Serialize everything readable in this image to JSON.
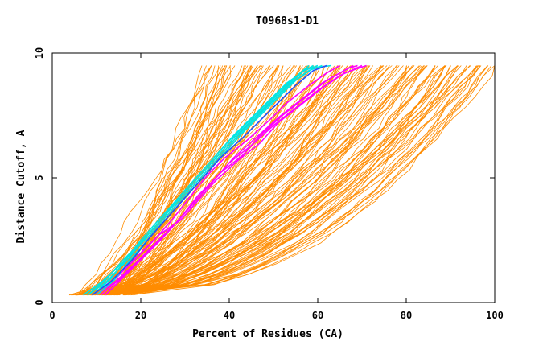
{
  "colors": {
    "background": "#ffffff",
    "axis": "#000000",
    "orange": "#ff8c00",
    "magenta": "#ff00ff",
    "cyan": "#00e5e5",
    "blue": "#1e50ff"
  },
  "chart_data": {
    "type": "line",
    "title": "T0968s1-D1",
    "xlabel": "Percent of Residues (CA)",
    "ylabel": "Distance Cutoff, A",
    "xlim": [
      0,
      100
    ],
    "ylim": [
      0,
      10
    ],
    "xticks": [
      0,
      20,
      40,
      60,
      80,
      100
    ],
    "yticks": [
      0,
      5,
      10
    ],
    "x_tick_labels": [
      "0",
      "20",
      "40",
      "60",
      "80",
      "100"
    ],
    "y_tick_labels": [
      "0",
      "5",
      "10"
    ],
    "y_max_curve": 9.5,
    "y_min_curve": 0.3,
    "highlight_series": [
      {
        "name": "magenta-1",
        "color": "magenta",
        "points": [
          [
            10,
            0.3
          ],
          [
            14,
            0.8
          ],
          [
            19,
            1.6
          ],
          [
            24,
            2.5
          ],
          [
            28,
            3.2
          ],
          [
            32,
            4.0
          ],
          [
            36,
            4.8
          ],
          [
            40,
            5.6
          ],
          [
            45,
            6.3
          ],
          [
            50,
            7.1
          ],
          [
            55,
            7.8
          ],
          [
            60,
            8.5
          ],
          [
            65,
            9.1
          ],
          [
            70,
            9.5
          ]
        ]
      },
      {
        "name": "magenta-2",
        "color": "magenta",
        "points": [
          [
            11,
            0.3
          ],
          [
            15,
            0.9
          ],
          [
            20,
            1.7
          ],
          [
            25,
            2.6
          ],
          [
            29,
            3.4
          ],
          [
            33,
            4.3
          ],
          [
            37,
            5.0
          ],
          [
            41,
            5.8
          ],
          [
            46,
            6.6
          ],
          [
            51,
            7.4
          ],
          [
            56,
            8.1
          ],
          [
            61,
            8.8
          ],
          [
            66,
            9.3
          ],
          [
            68,
            9.5
          ]
        ]
      },
      {
        "name": "magenta-3",
        "color": "magenta",
        "points": [
          [
            12,
            0.3
          ],
          [
            16,
            1.0
          ],
          [
            21,
            1.9
          ],
          [
            26,
            2.8
          ],
          [
            30,
            3.6
          ],
          [
            34,
            4.4
          ],
          [
            38,
            5.2
          ],
          [
            43,
            5.9
          ],
          [
            47,
            6.7
          ],
          [
            52,
            7.5
          ],
          [
            57,
            8.2
          ],
          [
            62,
            8.9
          ],
          [
            67,
            9.4
          ],
          [
            69,
            9.5
          ]
        ]
      },
      {
        "name": "magenta-4",
        "color": "magenta",
        "points": [
          [
            9,
            0.3
          ],
          [
            13,
            0.8
          ],
          [
            18,
            1.6
          ],
          [
            23,
            2.5
          ],
          [
            27,
            3.3
          ],
          [
            31,
            4.2
          ],
          [
            35,
            5.1
          ],
          [
            39,
            5.8
          ],
          [
            44,
            6.5
          ],
          [
            49,
            7.3
          ],
          [
            53,
            8.0
          ],
          [
            58,
            8.7
          ],
          [
            62,
            9.2
          ],
          [
            65,
            9.5
          ]
        ]
      },
      {
        "name": "magenta-5",
        "color": "magenta",
        "points": [
          [
            10,
            0.3
          ],
          [
            14,
            0.9
          ],
          [
            19,
            1.8
          ],
          [
            24,
            2.7
          ],
          [
            29,
            3.3
          ],
          [
            33,
            4.1
          ],
          [
            37,
            4.9
          ],
          [
            42,
            5.7
          ],
          [
            47,
            6.4
          ],
          [
            51,
            7.2
          ],
          [
            56,
            7.9
          ],
          [
            61,
            8.6
          ],
          [
            66,
            9.2
          ],
          [
            71,
            9.5
          ]
        ]
      },
      {
        "name": "cyan-1",
        "color": "cyan",
        "points": [
          [
            8,
            0.3
          ],
          [
            12,
            0.8
          ],
          [
            17,
            1.7
          ],
          [
            21,
            2.6
          ],
          [
            25,
            3.4
          ],
          [
            29,
            4.2
          ],
          [
            33,
            5.0
          ],
          [
            37,
            5.8
          ],
          [
            41,
            6.6
          ],
          [
            45,
            7.3
          ],
          [
            49,
            8.0
          ],
          [
            53,
            8.7
          ],
          [
            57,
            9.3
          ],
          [
            59,
            9.5
          ]
        ]
      },
      {
        "name": "cyan-2",
        "color": "cyan",
        "points": [
          [
            9,
            0.3
          ],
          [
            13,
            0.9
          ],
          [
            17,
            1.8
          ],
          [
            22,
            2.7
          ],
          [
            26,
            3.5
          ],
          [
            30,
            4.3
          ],
          [
            34,
            5.1
          ],
          [
            38,
            5.9
          ],
          [
            42,
            6.7
          ],
          [
            46,
            7.4
          ],
          [
            50,
            8.1
          ],
          [
            54,
            8.8
          ],
          [
            58,
            9.3
          ],
          [
            61,
            9.5
          ]
        ]
      },
      {
        "name": "cyan-3",
        "color": "cyan",
        "points": [
          [
            7,
            0.3
          ],
          [
            11,
            0.8
          ],
          [
            16,
            1.6
          ],
          [
            20,
            2.5
          ],
          [
            24,
            3.3
          ],
          [
            28,
            4.1
          ],
          [
            32,
            4.9
          ],
          [
            36,
            5.7
          ],
          [
            40,
            6.5
          ],
          [
            44,
            7.2
          ],
          [
            48,
            7.9
          ],
          [
            52,
            8.6
          ],
          [
            56,
            9.2
          ],
          [
            58,
            9.5
          ]
        ]
      },
      {
        "name": "cyan-4",
        "color": "cyan",
        "points": [
          [
            10,
            0.3
          ],
          [
            14,
            0.9
          ],
          [
            18,
            1.8
          ],
          [
            23,
            2.8
          ],
          [
            27,
            3.6
          ],
          [
            31,
            4.4
          ],
          [
            35,
            5.2
          ],
          [
            39,
            6.0
          ],
          [
            43,
            6.8
          ],
          [
            47,
            7.5
          ],
          [
            51,
            8.2
          ],
          [
            55,
            8.9
          ],
          [
            59,
            9.4
          ],
          [
            63,
            9.5
          ]
        ]
      },
      {
        "name": "cyan-5",
        "color": "cyan",
        "points": [
          [
            8,
            0.3
          ],
          [
            12,
            0.9
          ],
          [
            16,
            1.7
          ],
          [
            21,
            2.6
          ],
          [
            25,
            3.4
          ],
          [
            29,
            4.3
          ],
          [
            33,
            5.1
          ],
          [
            37,
            5.9
          ],
          [
            41,
            6.7
          ],
          [
            45,
            7.4
          ],
          [
            49,
            8.1
          ],
          [
            53,
            8.8
          ],
          [
            57,
            9.3
          ],
          [
            60,
            9.5
          ]
        ]
      },
      {
        "name": "blue-1",
        "color": "blue",
        "points": [
          [
            9,
            0.3
          ],
          [
            13,
            0.8
          ],
          [
            18,
            1.7
          ],
          [
            22,
            2.6
          ],
          [
            26,
            3.4
          ],
          [
            30,
            4.2
          ],
          [
            34,
            5.0
          ],
          [
            38,
            5.8
          ],
          [
            43,
            6.6
          ],
          [
            47,
            7.3
          ],
          [
            51,
            8.0
          ],
          [
            55,
            8.7
          ],
          [
            59,
            9.3
          ],
          [
            62,
            9.5
          ]
        ]
      }
    ],
    "background_series_count": 150
  }
}
